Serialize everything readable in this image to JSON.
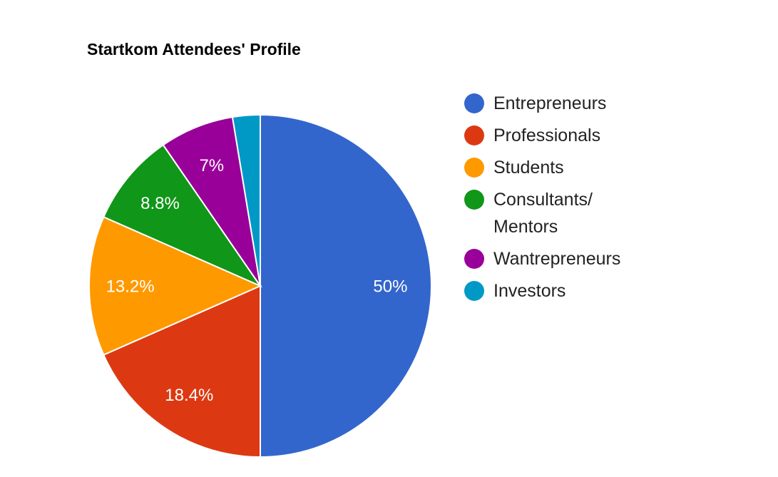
{
  "chart_data": {
    "type": "pie",
    "title": "Startkom Attendees' Profile",
    "categories": [
      "Entrepreneurs",
      "Professionals",
      "Students",
      "Consultants/ Mentors",
      "Wantrepreneurs",
      "Investors"
    ],
    "values": [
      50,
      18.4,
      13.2,
      8.8,
      7,
      2.6
    ],
    "value_labels": [
      "50%",
      "18.4%",
      "13.2%",
      "8.8%",
      "7%",
      null
    ],
    "colors": [
      "#3366cc",
      "#dc3912",
      "#ff9900",
      "#109618",
      "#990099",
      "#0099c6"
    ],
    "legend": "right"
  }
}
